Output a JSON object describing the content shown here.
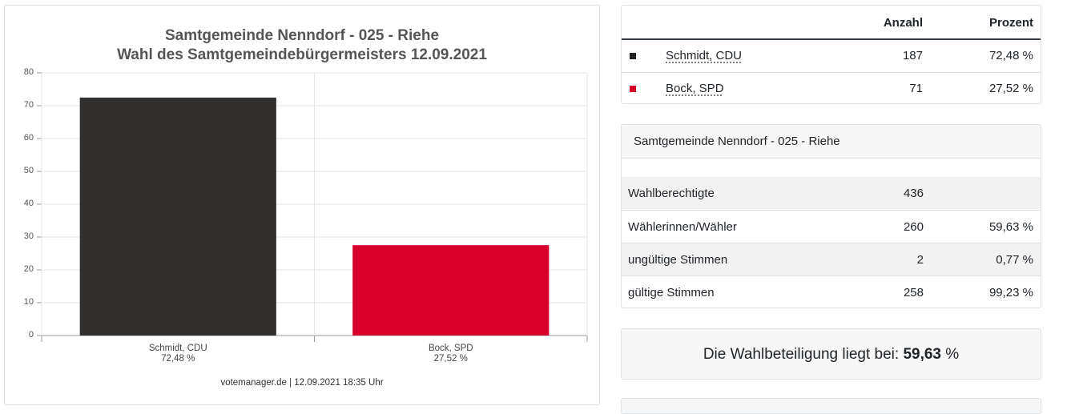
{
  "chart_data": {
    "type": "bar",
    "title": "Samtgemeinde Nenndorf - 025 - Riehe",
    "subtitle": "Wahl des Samtgemeindebürgermeisters 12.09.2021",
    "categories": [
      "Schmidt, CDU",
      "Bock, SPD"
    ],
    "value_labels": [
      "72,48 %",
      "27,52 %"
    ],
    "values": [
      72.48,
      27.52
    ],
    "colors": [
      "#32302e",
      "#d7002a"
    ],
    "ylim": [
      0,
      80
    ],
    "yticks": [
      0,
      10,
      20,
      30,
      40,
      50,
      60,
      70,
      80
    ],
    "grid": true,
    "credit": "votemanager.de | 12.09.2021 18:35 Uhr"
  },
  "results": {
    "col_count": "Anzahl",
    "col_percent": "Prozent",
    "rows": [
      {
        "name": "Schmidt, CDU",
        "count": "187",
        "percent": "72,48 %",
        "color": "#222222"
      },
      {
        "name": "Bock, SPD",
        "count": "71",
        "percent": "27,52 %",
        "color": "#d7002a"
      }
    ]
  },
  "stats": {
    "title": "Samtgemeinde Nenndorf - 025 - Riehe",
    "rows": [
      {
        "label": "Wahlberechtigte",
        "count": "436",
        "percent": ""
      },
      {
        "label": "Wählerinnen/Wähler",
        "count": "260",
        "percent": "59,63 %"
      },
      {
        "label": "ungültige Stimmen",
        "count": "2",
        "percent": "0,77 %"
      },
      {
        "label": "gültige Stimmen",
        "count": "258",
        "percent": "99,23 %"
      }
    ]
  },
  "turnout": {
    "label": "Die Wahlbeteiligung liegt bei:",
    "value": "59,63",
    "unit": "%"
  }
}
